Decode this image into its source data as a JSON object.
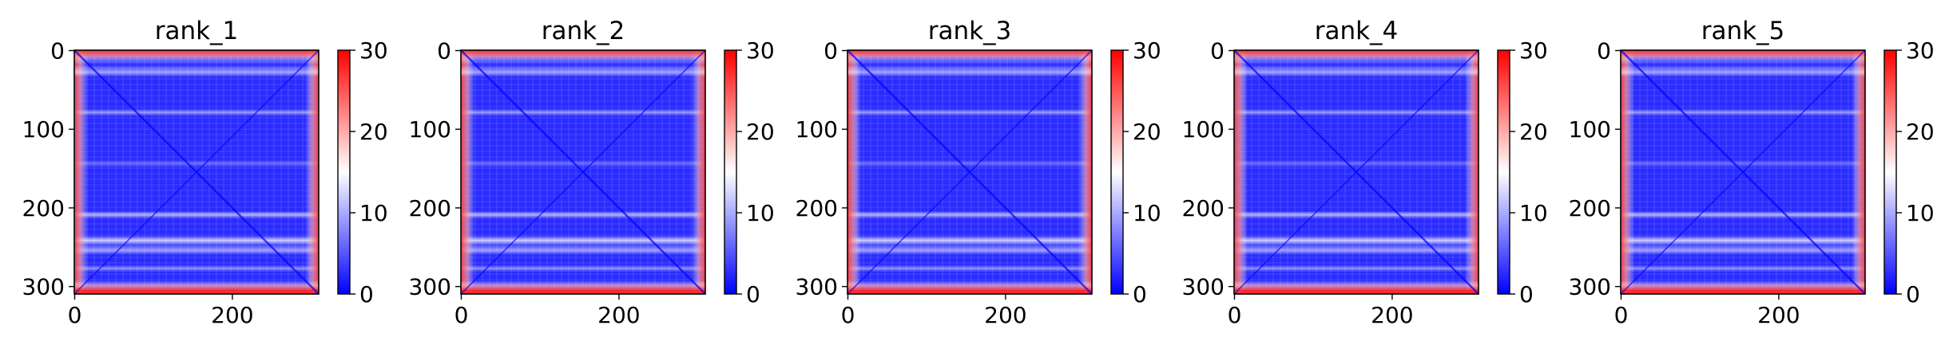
{
  "chart_data": {
    "type": "heatmap",
    "colormap": [
      "#0000ff",
      "#ffffff",
      "#ff0000"
    ],
    "color_range": [
      0,
      30
    ],
    "colorbar_ticks": [
      "0",
      "10",
      "20",
      "30"
    ],
    "x_ticks": [
      "0",
      "200"
    ],
    "y_ticks": [
      "0",
      "100",
      "200",
      "300"
    ],
    "matrix_size": 310,
    "panels": [
      {
        "title": "rank_1",
        "xticks": [
          "0",
          "200"
        ],
        "yticks": [
          "0",
          "100",
          "200",
          "300"
        ],
        "cbticks": [
          "0",
          "10",
          "20",
          "30"
        ]
      },
      {
        "title": "rank_2",
        "xticks": [
          "0",
          "200"
        ],
        "yticks": [
          "0",
          "100",
          "200",
          "300"
        ],
        "cbticks": [
          "0",
          "10",
          "20",
          "30"
        ]
      },
      {
        "title": "rank_3",
        "xticks": [
          "0",
          "200"
        ],
        "yticks": [
          "0",
          "100",
          "200",
          "300"
        ],
        "cbticks": [
          "0",
          "10",
          "20",
          "30"
        ]
      },
      {
        "title": "rank_4",
        "xticks": [
          "0",
          "200"
        ],
        "yticks": [
          "0",
          "100",
          "200",
          "300"
        ],
        "cbticks": [
          "0",
          "10",
          "20",
          "30"
        ]
      },
      {
        "title": "rank_5",
        "xticks": [
          "0",
          "200"
        ],
        "yticks": [
          "0",
          "100",
          "200",
          "300"
        ],
        "cbticks": [
          "0",
          "10",
          "20",
          "30"
        ]
      }
    ]
  }
}
